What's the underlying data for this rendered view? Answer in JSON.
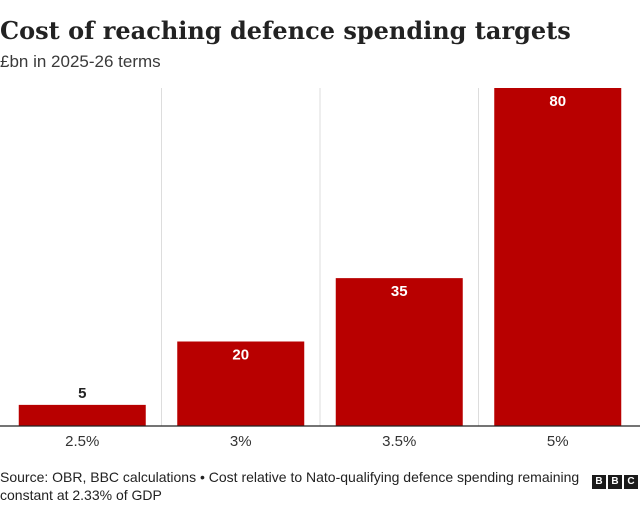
{
  "title": "Cost of reaching defence spending targets",
  "subtitle": "£bn in 2025-26 terms",
  "footer": "Source: OBR, BBC calculations • Cost relative to Nato-qualifying defence spending remaining constant at 2.33% of GDP",
  "logo": [
    "B",
    "B",
    "C"
  ],
  "colors": {
    "bar": "#b80000",
    "grid": "#dddddd",
    "axis": "#222222",
    "label_inside": "#ffffff",
    "label_outside": "#222222"
  },
  "chart_data": {
    "type": "bar",
    "title": "Cost of reaching defence spending targets",
    "subtitle": "£bn in 2025-26 terms",
    "categories": [
      "2.5%",
      "3%",
      "3.5%",
      "5%"
    ],
    "values": [
      5,
      20,
      35,
      80
    ],
    "xlabel": "",
    "ylabel": "",
    "ylim": [
      0,
      80
    ],
    "grid": true
  }
}
